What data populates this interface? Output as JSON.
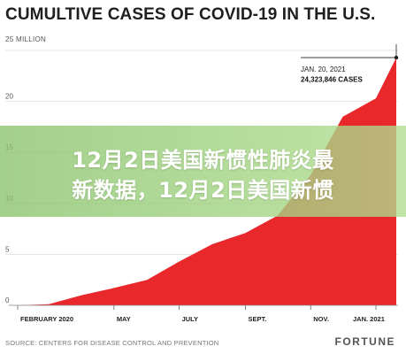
{
  "chart_data": {
    "type": "area",
    "title": "CUMULTIVE CASES OF COVID-19 IN THE U.S.",
    "unit_label": "25 MILLION",
    "ylim": [
      0,
      25
    ],
    "y_ticks": [
      "20",
      "15",
      "10",
      "5",
      "0"
    ],
    "x_tick_labels": [
      "FEBRUARY 2020",
      "MAY",
      "JULY",
      "SEPT.",
      "NOV.",
      "JAN. 2021"
    ],
    "x": [
      "2020-02",
      "2020-03",
      "2020-04",
      "2020-05",
      "2020-06",
      "2020-07",
      "2020-08",
      "2020-09",
      "2020-10",
      "2020-11",
      "2020-12",
      "2021-01-01",
      "2021-01-20"
    ],
    "values": [
      0,
      0.1,
      1.0,
      1.7,
      2.5,
      4.3,
      6.0,
      7.1,
      8.8,
      12.8,
      18.5,
      20.3,
      24.3
    ],
    "series_color": "#e8282b",
    "annotation": {
      "date": "JAN. 20, 2021",
      "value": "24,323,846 CASES"
    }
  },
  "overlay_text": {
    "line1": "12月2日美国新惯性肺炎最",
    "line2": "新数据，12月2日美国新惯"
  },
  "source": "SOURCE: CENTERS FOR DISEASE CONTROL AND PREVENTION",
  "brand": "FORTUNE"
}
